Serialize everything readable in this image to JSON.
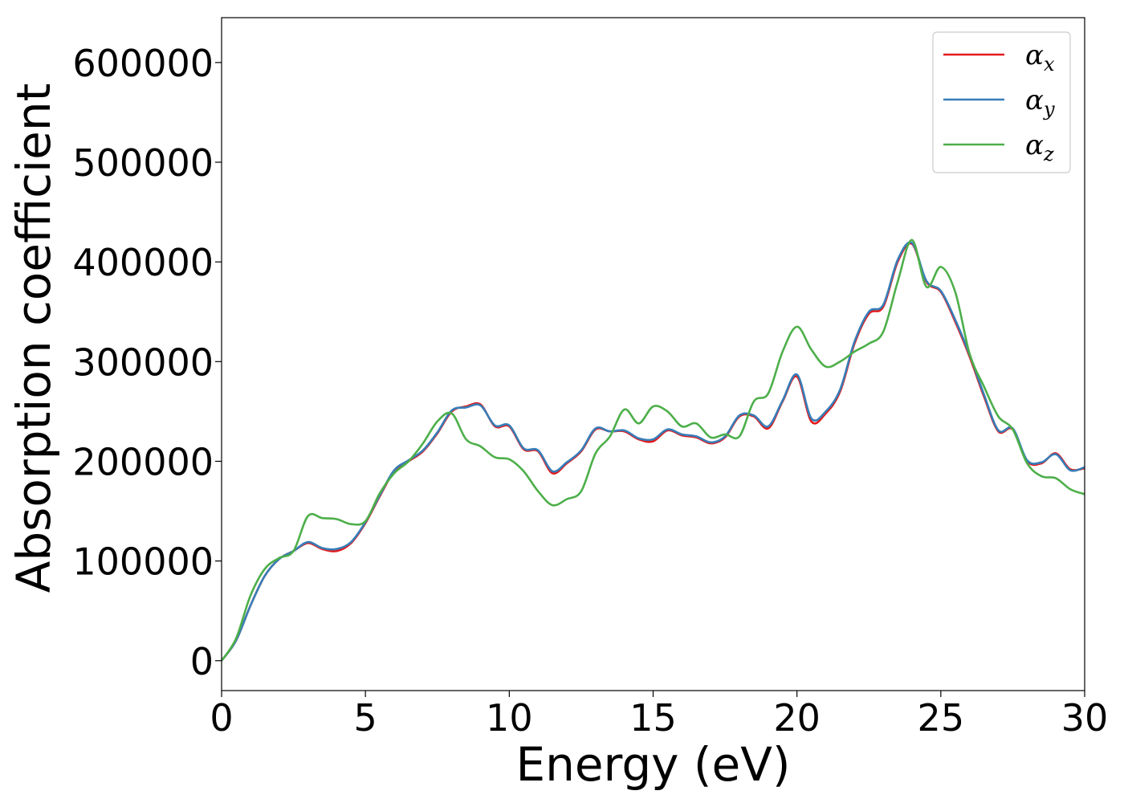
{
  "chart_data": {
    "type": "line",
    "title": "",
    "xlabel": "Energy (eV)",
    "ylabel": "Absorption coefficient",
    "xlim": [
      0,
      30
    ],
    "ylim": [
      -30000,
      645000
    ],
    "xticks": [
      0,
      5,
      10,
      15,
      20,
      25,
      30
    ],
    "xtick_labels": [
      "0",
      "5",
      "10",
      "15",
      "20",
      "25",
      "30"
    ],
    "yticks": [
      0,
      100000,
      200000,
      300000,
      400000,
      500000,
      600000
    ],
    "ytick_labels": [
      "0",
      "100000",
      "200000",
      "300000",
      "400000",
      "500000",
      "600000"
    ],
    "grid": false,
    "legend_position": "top-right",
    "x": [
      0,
      0.5,
      1,
      1.5,
      2,
      2.5,
      3,
      3.5,
      4,
      4.5,
      5,
      5.5,
      6,
      6.5,
      7,
      7.5,
      8,
      8.5,
      9,
      9.5,
      10,
      10.5,
      11,
      11.5,
      12,
      12.5,
      13,
      13.5,
      14,
      14.5,
      15,
      15.5,
      16,
      16.5,
      17,
      17.5,
      18,
      18.5,
      19,
      19.5,
      20,
      20.5,
      21,
      21.5,
      22,
      22.5,
      23,
      23.5,
      24,
      24.5,
      25,
      25.5,
      26,
      26.5,
      27,
      27.5,
      28,
      28.5,
      29,
      29.5,
      30
    ],
    "series": [
      {
        "name": "α",
        "subscript": "x",
        "color": "#e41a1c",
        "values": [
          0,
          20000,
          55000,
          85000,
          102000,
          110000,
          118000,
          112000,
          110000,
          118000,
          138000,
          165000,
          190000,
          200000,
          210000,
          228000,
          250000,
          255000,
          257000,
          235000,
          235000,
          212000,
          210000,
          188000,
          198000,
          210000,
          232000,
          230000,
          230000,
          222000,
          220000,
          231000,
          226000,
          224000,
          218000,
          224000,
          245000,
          245000,
          233000,
          260000,
          285000,
          240000,
          248000,
          270000,
          318000,
          348000,
          355000,
          400000,
          418000,
          380000,
          370000,
          340000,
          305000,
          265000,
          230000,
          232000,
          200000,
          198000,
          208000,
          192000,
          193000
        ]
      },
      {
        "name": "α",
        "subscript": "y",
        "color": "#377eb8",
        "values": [
          0,
          20000,
          55000,
          85000,
          102000,
          110000,
          119000,
          113000,
          112000,
          119000,
          139000,
          166000,
          191000,
          201000,
          211000,
          229000,
          251000,
          254000,
          256000,
          236000,
          236000,
          213000,
          211000,
          190000,
          199000,
          211000,
          233000,
          230000,
          231000,
          223000,
          222000,
          232000,
          227000,
          225000,
          219000,
          225000,
          246000,
          246000,
          235000,
          261000,
          287000,
          243000,
          250000,
          272000,
          320000,
          350000,
          357000,
          402000,
          419000,
          381000,
          371000,
          342000,
          307000,
          267000,
          231000,
          233000,
          201000,
          199000,
          207000,
          191000,
          194000
        ]
      },
      {
        "name": "α",
        "subscript": "z",
        "color": "#4daf4a",
        "values": [
          0,
          22000,
          65000,
          92000,
          103000,
          110000,
          145000,
          143000,
          142000,
          137000,
          140000,
          168000,
          188000,
          200000,
          218000,
          240000,
          248000,
          222000,
          215000,
          204000,
          202000,
          190000,
          170000,
          156000,
          162000,
          170000,
          208000,
          225000,
          252000,
          238000,
          255000,
          250000,
          235000,
          238000,
          224000,
          227000,
          225000,
          260000,
          268000,
          310000,
          335000,
          312000,
          295000,
          300000,
          310000,
          318000,
          330000,
          380000,
          422000,
          375000,
          395000,
          370000,
          308000,
          275000,
          245000,
          232000,
          198000,
          185000,
          183000,
          172000,
          167000
        ]
      }
    ]
  }
}
